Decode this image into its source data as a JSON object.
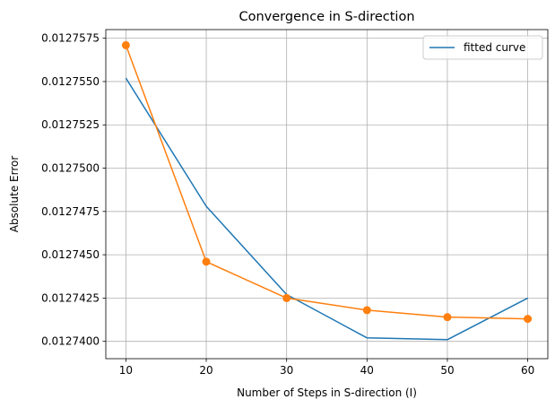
{
  "chart_data": {
    "type": "line",
    "title": "Convergence in S-direction",
    "xlabel": "Number of Steps in S-direction (I)",
    "ylabel": "Absolute Error",
    "x": [
      10,
      20,
      30,
      40,
      50,
      60
    ],
    "xlim": [
      7.5,
      62.5
    ],
    "ylim": [
      0.012739,
      0.012758
    ],
    "xticks": [
      10,
      20,
      30,
      40,
      50,
      60
    ],
    "xtick_labels": [
      "10",
      "20",
      "30",
      "40",
      "50",
      "60"
    ],
    "yticks": [
      0.01274,
      0.0127425,
      0.012745,
      0.0127475,
      0.01275,
      0.0127525,
      0.012755,
      0.0127575
    ],
    "ytick_labels": [
      "0.0127400",
      "0.0127425",
      "0.0127450",
      "0.0127475",
      "0.0127500",
      "0.0127525",
      "0.0127550",
      "0.0127575"
    ],
    "grid": true,
    "legend_position": "top-right",
    "series": [
      {
        "name": "fitted curve",
        "color": "#1f77b4",
        "marker": "none",
        "y": [
          0.0127552,
          0.0127478,
          0.0127427,
          0.0127402,
          0.0127401,
          0.0127425
        ]
      },
      {
        "color": "#ff7f0e",
        "marker": "circle",
        "y": [
          0.0127571,
          0.0127446,
          0.0127425,
          0.0127418,
          0.0127414,
          0.0127413
        ]
      }
    ]
  }
}
